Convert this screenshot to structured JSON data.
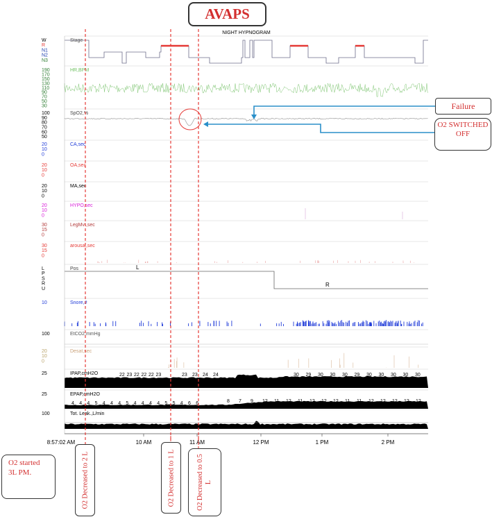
{
  "title_box": "AVAPS",
  "chart_title": "NIGHT HYPNOGRAM",
  "callouts": {
    "failure": "Failure",
    "o2_off": "O2 SWITCHED OFF"
  },
  "notes": {
    "o2_started": "O2 started 3L PM.",
    "dec_2l": "O2 Decreased to 2 L",
    "dec_1l": "O2 Decreased to 1 L",
    "dec_05l": "O2 Decreased to 0.5 L"
  },
  "colors": {
    "accent": "#e53935",
    "callout_line": "#2a8fc9",
    "event_red": "#e53935"
  },
  "chart_data": {
    "type": "line",
    "time_start_label": "8:57:02 AM",
    "x_ticks": [
      "8:57:02 AM",
      "10 AM",
      "11 AM",
      "12 PM",
      "1 PM",
      "2 PM"
    ],
    "marker_lines": [
      "O2 Decreased to 2 L",
      "O2 Decreased to 1 L",
      "O2 Decreased to 0.5 L"
    ],
    "channels": [
      {
        "key": "stage",
        "label": "Stage",
        "ticks": [
          "W",
          "R",
          "N1",
          "N2",
          "N3"
        ],
        "tick_colors": [
          "#000000",
          "#e53935",
          "#1e40af",
          "#1e40af",
          "#2e7d32"
        ],
        "color": "#555555"
      },
      {
        "key": "hr",
        "label": "HR,BPM",
        "ticks": [
          "190",
          "170",
          "150",
          "130",
          "110",
          "90",
          "70",
          "50",
          "30"
        ],
        "tick_colors": [
          "#2e7d32",
          "#2e7d32",
          "#2e7d32",
          "#2e7d32",
          "#2e7d32",
          "#2e7d32",
          "#2e7d32",
          "#2e7d32",
          "#2e7d32"
        ],
        "color": "#6cbf5f"
      },
      {
        "key": "spo2",
        "label": "SpO2,%",
        "ticks": [
          "100",
          "90",
          "80",
          "70",
          "60",
          "50"
        ],
        "tick_colors": [
          "#000000",
          "#000000",
          "#000000",
          "#000000",
          "#000000",
          "#000000"
        ],
        "color": "#9e9e9e"
      },
      {
        "key": "ca",
        "label": "CA,sec",
        "ticks": [
          "20",
          "10",
          "0"
        ],
        "tick_colors": [
          "#1e3ad8",
          "#1e3ad8",
          "#1e3ad8"
        ],
        "color": "#1e3ad8"
      },
      {
        "key": "oa",
        "label": "OA,sec",
        "ticks": [
          "20",
          "10",
          "0"
        ],
        "tick_colors": [
          "#e53935",
          "#e53935",
          "#e53935"
        ],
        "color": "#e53935"
      },
      {
        "key": "ma",
        "label": "MA,sec",
        "ticks": [
          "20",
          "10",
          "0"
        ],
        "tick_colors": [
          "#000000",
          "#000000",
          "#000000"
        ],
        "color": "#000000"
      },
      {
        "key": "hypo",
        "label": "HYPO,sec",
        "ticks": [
          "20",
          "10",
          "0"
        ],
        "tick_colors": [
          "#d81bd8",
          "#d81bd8",
          "#d81bd8"
        ],
        "color": "#d81bd8"
      },
      {
        "key": "legmvt",
        "label": "LegMvt,sec",
        "ticks": [
          "30",
          "15",
          "0"
        ],
        "tick_colors": [
          "#b23a3a",
          "#b23a3a",
          "#b23a3a"
        ],
        "color": "#b23a3a"
      },
      {
        "key": "arousal",
        "label": "arousal,sec",
        "ticks": [
          "30",
          "15",
          "0"
        ],
        "tick_colors": [
          "#e53935",
          "#e53935",
          "#e53935"
        ],
        "color": "#e53935"
      },
      {
        "key": "pos",
        "label": "Pos",
        "ticks": [
          "L",
          "P",
          "S",
          "R",
          "U"
        ],
        "tick_colors": [
          "#000000",
          "#000000",
          "#000000",
          "#000000",
          "#000000"
        ],
        "color": "#444444"
      },
      {
        "key": "snore",
        "label": "Snore,#",
        "ticks": [
          "10"
        ],
        "tick_colors": [
          "#1e3ad8"
        ],
        "color": "#1e3ad8"
      },
      {
        "key": "etco2",
        "label": "EtCO2,mmHg",
        "ticks": [
          "100"
        ],
        "tick_colors": [
          "#000000"
        ],
        "color": "#555555"
      },
      {
        "key": "desat",
        "label": "Desat,sec",
        "ticks": [
          "20",
          "10",
          "0"
        ],
        "tick_colors": [
          "#b9a36a",
          "#b9a36a",
          "#b9a36a"
        ],
        "color": "#caa27a"
      },
      {
        "key": "ipap",
        "label": "IPAP,cmH2O",
        "ticks": [
          "25"
        ],
        "tick_colors": [
          "#000000"
        ],
        "color": "#000000"
      },
      {
        "key": "epap",
        "label": "EPAP,cmH2O",
        "ticks": [
          "25"
        ],
        "tick_colors": [
          "#000000"
        ],
        "color": "#000000"
      },
      {
        "key": "leak",
        "label": "Tot. Leak.,L/min",
        "ticks": [
          "100"
        ],
        "tick_colors": [
          "#000000"
        ],
        "color": "#000000"
      }
    ],
    "position_labels": [
      "L",
      "R"
    ],
    "ipap_values": [
      "22",
      "23",
      "22",
      "22",
      "22",
      "23",
      "23",
      "23",
      "24",
      "24",
      "30",
      "29",
      "30",
      "30",
      "30",
      "29",
      "30",
      "30",
      "30",
      "30",
      "30"
    ],
    "epap_values": [
      "4",
      "4",
      "4",
      "5",
      "4",
      "4",
      "4",
      "5",
      "4",
      "4",
      "4",
      "4",
      "5",
      "5",
      "4",
      "6",
      "6",
      "8",
      "7",
      "9",
      "12",
      "11",
      "12",
      "11",
      "12",
      "12",
      "12",
      "11",
      "11",
      "12",
      "12",
      "12",
      "12",
      "12"
    ]
  }
}
